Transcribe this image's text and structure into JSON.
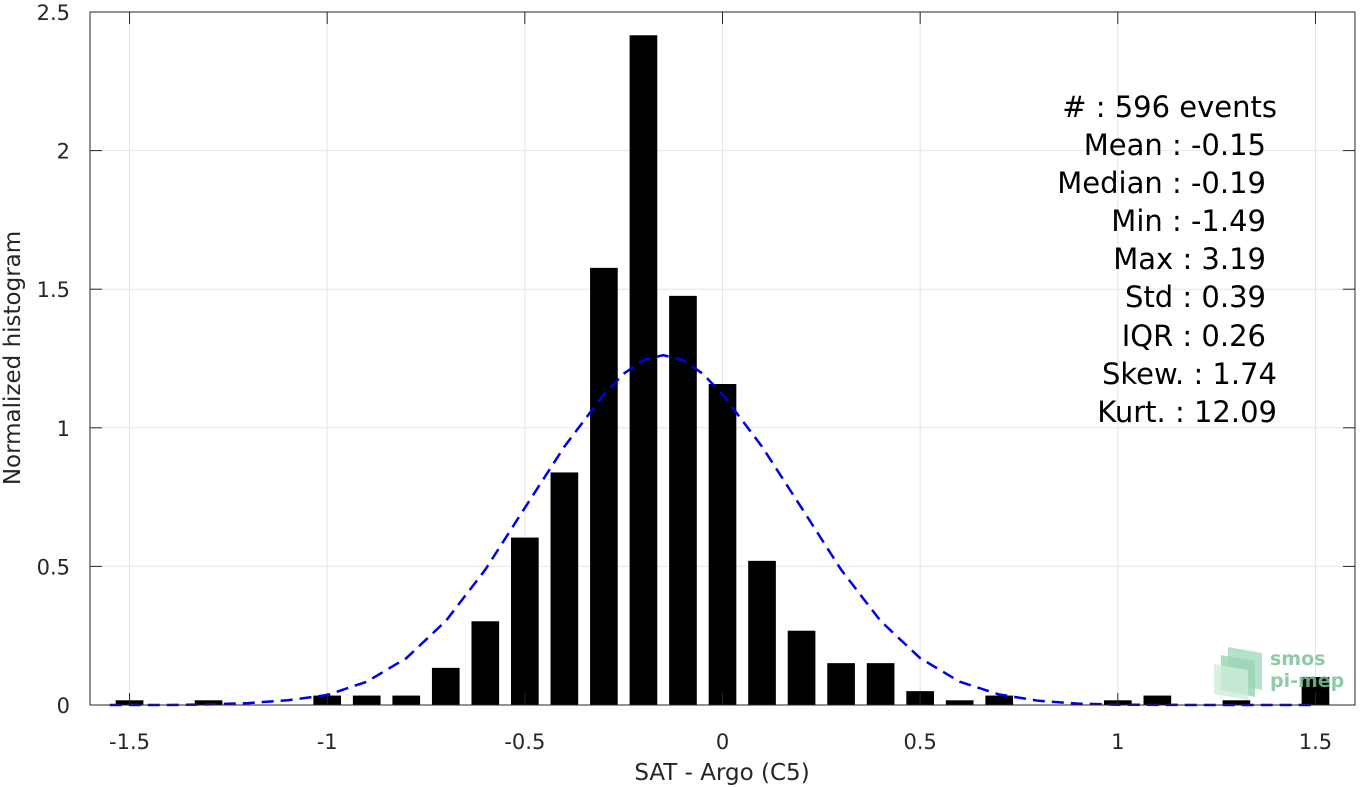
{
  "chart_data": {
    "type": "bar",
    "xlabel": "SAT - Argo (C5)",
    "ylabel": "Normalized histogram",
    "xlim": [
      -1.6,
      1.6
    ],
    "ylim": [
      0,
      2.5
    ],
    "xticks": [
      "-1.5",
      "-1",
      "-0.5",
      "0",
      "0.5",
      "1",
      "1.5"
    ],
    "yticks": [
      "0",
      "0.5",
      "1",
      "1.5",
      "2",
      "2.5"
    ],
    "grid": true,
    "bar_color": "#000000",
    "bins": [
      {
        "x": -1.5,
        "y": 0.017
      },
      {
        "x": -1.3,
        "y": 0.017
      },
      {
        "x": -1.0,
        "y": 0.034
      },
      {
        "x": -0.9,
        "y": 0.034
      },
      {
        "x": -0.8,
        "y": 0.034
      },
      {
        "x": -0.7,
        "y": 0.134
      },
      {
        "x": -0.6,
        "y": 0.302
      },
      {
        "x": -0.5,
        "y": 0.604
      },
      {
        "x": -0.4,
        "y": 0.839
      },
      {
        "x": -0.3,
        "y": 1.577
      },
      {
        "x": -0.2,
        "y": 2.416
      },
      {
        "x": -0.1,
        "y": 1.476
      },
      {
        "x": 0.0,
        "y": 1.158
      },
      {
        "x": 0.1,
        "y": 0.52
      },
      {
        "x": 0.2,
        "y": 0.268
      },
      {
        "x": 0.3,
        "y": 0.151
      },
      {
        "x": 0.4,
        "y": 0.151
      },
      {
        "x": 0.5,
        "y": 0.05
      },
      {
        "x": 0.6,
        "y": 0.017
      },
      {
        "x": 0.7,
        "y": 0.034
      },
      {
        "x": 1.0,
        "y": 0.017
      },
      {
        "x": 1.1,
        "y": 0.034
      },
      {
        "x": 1.3,
        "y": 0.017
      },
      {
        "x": 1.5,
        "y": 0.101
      }
    ],
    "fit": {
      "type": "gaussian",
      "color": "#0000e6",
      "style": "dashed",
      "points": [
        [
          -1.55,
          0.0
        ],
        [
          -1.4,
          0.0
        ],
        [
          -1.3,
          0.002
        ],
        [
          -1.2,
          0.007
        ],
        [
          -1.1,
          0.017
        ],
        [
          -1.0,
          0.036
        ],
        [
          -0.9,
          0.084
        ],
        [
          -0.8,
          0.169
        ],
        [
          -0.7,
          0.303
        ],
        [
          -0.6,
          0.488
        ],
        [
          -0.5,
          0.711
        ],
        [
          -0.4,
          0.932
        ],
        [
          -0.3,
          1.121
        ],
        [
          -0.25,
          1.195
        ],
        [
          -0.2,
          1.245
        ],
        [
          -0.15,
          1.262
        ],
        [
          -0.1,
          1.245
        ],
        [
          -0.05,
          1.195
        ],
        [
          0.0,
          1.121
        ],
        [
          0.1,
          0.932
        ],
        [
          0.2,
          0.711
        ],
        [
          0.3,
          0.488
        ],
        [
          0.4,
          0.303
        ],
        [
          0.5,
          0.169
        ],
        [
          0.6,
          0.084
        ],
        [
          0.7,
          0.038
        ],
        [
          0.8,
          0.015
        ],
        [
          0.9,
          0.005
        ],
        [
          1.0,
          0.001
        ],
        [
          1.2,
          0.0
        ],
        [
          1.5,
          0.0
        ]
      ]
    },
    "annotation": [
      "#  : 596 events",
      "Mean : -0.15",
      "Median : -0.19",
      "Min : -1.49",
      "Max : 3.19",
      "Std : 0.39",
      "IQR : 0.26",
      "Skew. : 1.74",
      "Kurt. : 12.09"
    ]
  },
  "logo": {
    "line1": "smos",
    "line2": "pi-mep"
  }
}
